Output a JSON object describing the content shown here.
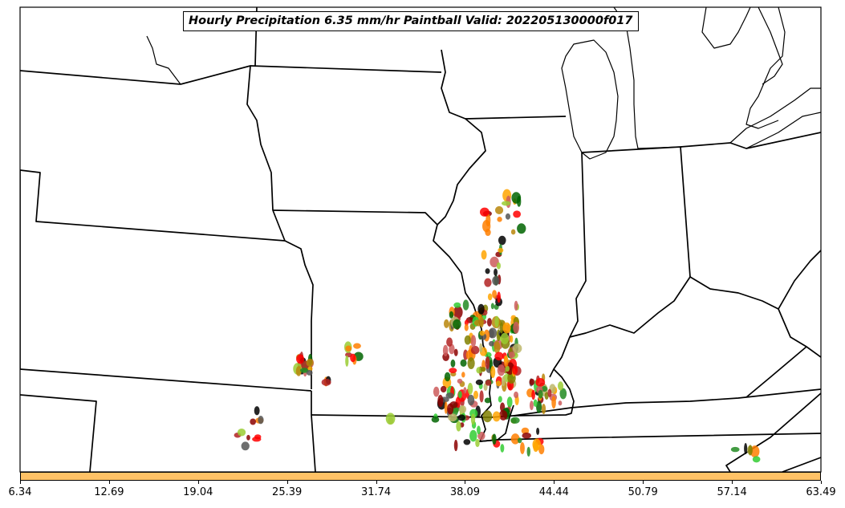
{
  "title": "Hourly Precipitation 6.35 mm/hr Paintball Valid: 202205130000f017",
  "colorbar": {
    "color": "#ffc266",
    "ticks": [
      "6.34",
      "12.69",
      "19.04",
      "25.39",
      "31.74",
      "38.09",
      "44.44",
      "50.79",
      "57.14",
      "63.49"
    ]
  },
  "colors": {
    "border": "#000000",
    "background": "#ffffff",
    "member_colors": [
      "#006400",
      "#8b0000",
      "#ffa500",
      "#808000",
      "#228b22",
      "#ff0000",
      "#32cd32",
      "#b22222",
      "#9acd32",
      "#ff7f00",
      "#000000",
      "#b8860b",
      "#bdb76b",
      "#555555",
      "#cd5c5c"
    ]
  }
}
